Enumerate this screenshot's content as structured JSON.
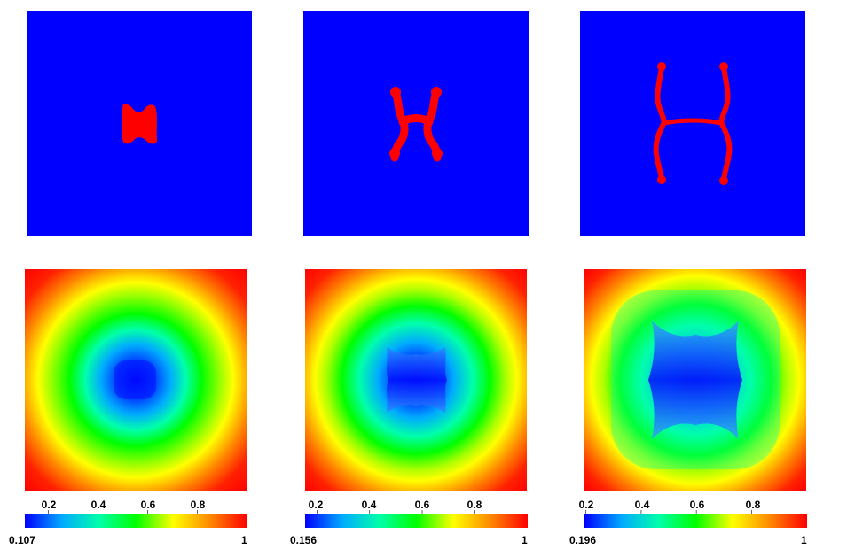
{
  "colors": {
    "phase_background": "#0000ff",
    "phase_inclusion": "#ff0000",
    "colormap_stops": [
      "#0000ff",
      "#00aaff",
      "#00ffaa",
      "#00ff00",
      "#ffff00",
      "#ff8800",
      "#ff0000"
    ]
  },
  "figure_rows": [
    "phase-field",
    "concentration-field"
  ],
  "colorbars": [
    {
      "min_label": "0.107",
      "max_label": "1",
      "min": 0.107,
      "max": 1,
      "tick_labels": [
        "0.2",
        "0.4",
        "0.6",
        "0.8"
      ],
      "ticks": [
        0.2,
        0.4,
        0.6,
        0.8
      ]
    },
    {
      "min_label": "0.156",
      "max_label": "1",
      "min": 0.156,
      "max": 1,
      "tick_labels": [
        "0.2",
        "0.4",
        "0.6",
        "0.8"
      ],
      "ticks": [
        0.2,
        0.4,
        0.6,
        0.8
      ]
    },
    {
      "min_label": "0.196",
      "max_label": "1",
      "min": 0.196,
      "max": 1,
      "tick_labels": [
        "0.2",
        "0.4",
        "0.6",
        "0.8"
      ],
      "ticks": [
        0.2,
        0.4,
        0.6,
        0.8
      ]
    }
  ]
}
